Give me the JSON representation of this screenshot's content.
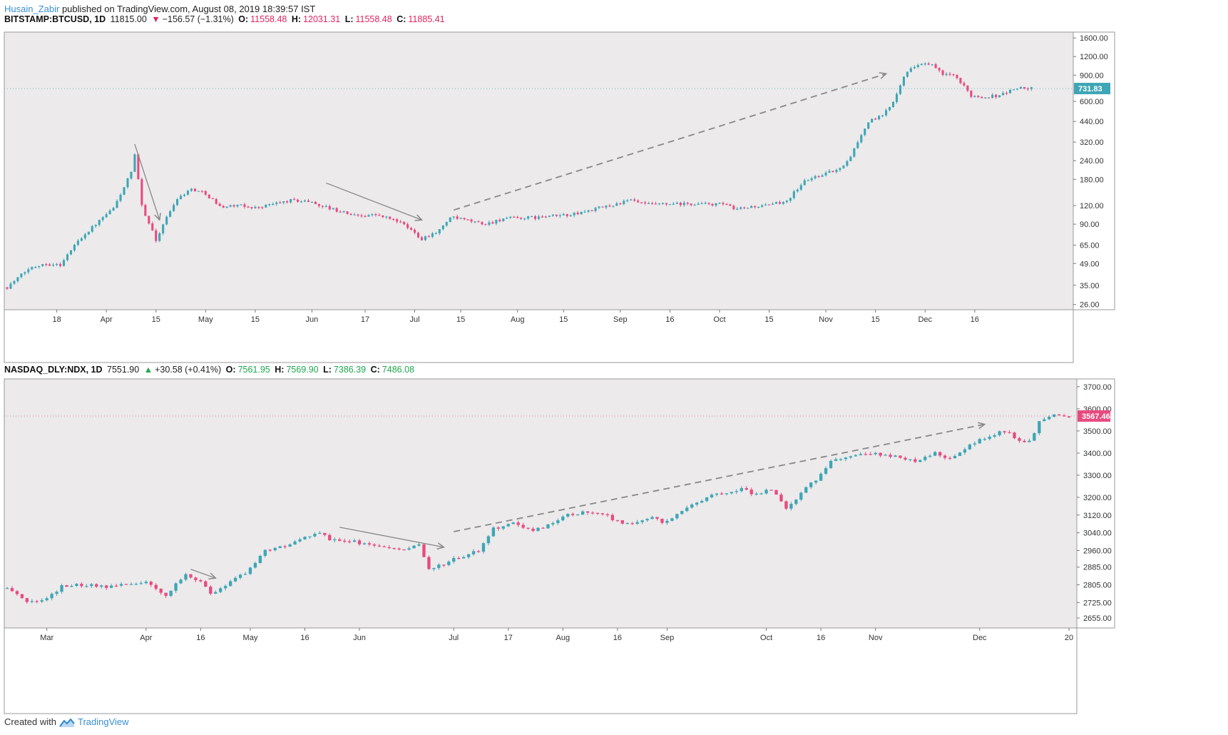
{
  "header": {
    "author": "Husain_Zabir",
    "published_text": "published on TradingView.com, August 08, 2019 18:39:57 IST"
  },
  "footer": {
    "created_with": "Created with",
    "brand": "TradingView"
  },
  "colors": {
    "up": "#3ea6b5",
    "down": "#e84a7f",
    "plot_bg": "#eceaeb",
    "arrow": "#888888"
  },
  "chart_data": [
    {
      "type": "candlestick",
      "symbol": "BITSTAMP:BTCUSD, 1D",
      "legend": {
        "last": "11815.00",
        "direction": "down",
        "change": "−156.57 (−1.31%)",
        "o_label": "O:",
        "o": "11558.48",
        "h_label": "H:",
        "h": "12031.31",
        "l_label": "L:",
        "l": "11558.48",
        "c_label": "C:",
        "c": "11885.41"
      },
      "y_scale": "log",
      "ylim": [
        24,
        1750
      ],
      "y_ticks": [
        {
          "v": 1600,
          "label": "1600.00"
        },
        {
          "v": 1200,
          "label": "1200.00"
        },
        {
          "v": 900,
          "label": "900.00"
        },
        {
          "v": 600,
          "label": "600.00"
        },
        {
          "v": 440,
          "label": "440.00"
        },
        {
          "v": 320,
          "label": "320.00"
        },
        {
          "v": 240,
          "label": "240.00"
        },
        {
          "v": 180,
          "label": "180.00"
        },
        {
          "v": 120,
          "label": "120.00"
        },
        {
          "v": 90,
          "label": "90.00"
        },
        {
          "v": 65,
          "label": "65.00"
        },
        {
          "v": 49,
          "label": "49.00"
        },
        {
          "v": 35,
          "label": "35.00"
        },
        {
          "v": 26,
          "label": "26.00"
        }
      ],
      "last_price_tag": {
        "value": 731.83,
        "label": "731.83",
        "color": "#3ea6b5"
      },
      "x_range": [
        0,
        300
      ],
      "x_ticks": [
        {
          "v": 14,
          "label": "18"
        },
        {
          "v": 28,
          "label": "Apr"
        },
        {
          "v": 42,
          "label": "15"
        },
        {
          "v": 56,
          "label": "May"
        },
        {
          "v": 70,
          "label": "15"
        },
        {
          "v": 86,
          "label": "Jun"
        },
        {
          "v": 101,
          "label": "17"
        },
        {
          "v": 115,
          "label": "Jul"
        },
        {
          "v": 128,
          "label": "15"
        },
        {
          "v": 144,
          "label": "Aug"
        },
        {
          "v": 157,
          "label": "15"
        },
        {
          "v": 173,
          "label": "Sep"
        },
        {
          "v": 187,
          "label": "16"
        },
        {
          "v": 201,
          "label": "Oct"
        },
        {
          "v": 215,
          "label": "15"
        },
        {
          "v": 231,
          "label": "Nov"
        },
        {
          "v": 245,
          "label": "15"
        },
        {
          "v": 259,
          "label": "Dec"
        },
        {
          "v": 273,
          "label": "16"
        }
      ],
      "path": [
        [
          0,
          34
        ],
        [
          6,
          45
        ],
        [
          10,
          49
        ],
        [
          15,
          48
        ],
        [
          20,
          70
        ],
        [
          25,
          90
        ],
        [
          30,
          115
        ],
        [
          35,
          200
        ],
        [
          36,
          260
        ],
        [
          38,
          120
        ],
        [
          42,
          70
        ],
        [
          44,
          90
        ],
        [
          48,
          135
        ],
        [
          52,
          155
        ],
        [
          56,
          145
        ],
        [
          60,
          118
        ],
        [
          65,
          120
        ],
        [
          70,
          116
        ],
        [
          80,
          130
        ],
        [
          85,
          128
        ],
        [
          92,
          113
        ],
        [
          98,
          103
        ],
        [
          104,
          104
        ],
        [
          110,
          95
        ],
        [
          114,
          82
        ],
        [
          117,
          72
        ],
        [
          122,
          82
        ],
        [
          125,
          100
        ],
        [
          130,
          95
        ],
        [
          135,
          90
        ],
        [
          140,
          98
        ],
        [
          150,
          100
        ],
        [
          160,
          105
        ],
        [
          170,
          120
        ],
        [
          176,
          130
        ],
        [
          180,
          122
        ],
        [
          185,
          122
        ],
        [
          195,
          123
        ],
        [
          203,
          122
        ],
        [
          205,
          112
        ],
        [
          210,
          118
        ],
        [
          215,
          120
        ],
        [
          220,
          130
        ],
        [
          225,
          175
        ],
        [
          230,
          195
        ],
        [
          235,
          210
        ],
        [
          238,
          260
        ],
        [
          243,
          440
        ],
        [
          247,
          480
        ],
        [
          250,
          600
        ],
        [
          253,
          900
        ],
        [
          257,
          1080
        ],
        [
          261,
          1050
        ],
        [
          264,
          900
        ],
        [
          266,
          920
        ],
        [
          268,
          850
        ],
        [
          272,
          660
        ],
        [
          275,
          640
        ],
        [
          280,
          660
        ],
        [
          285,
          740
        ],
        [
          289,
          731.83
        ]
      ],
      "annotations": [
        {
          "style": "solid",
          "from": [
            36,
            310
          ],
          "to": [
            43,
            96
          ]
        },
        {
          "style": "solid",
          "from": [
            90,
            170
          ],
          "to": [
            117,
            96
          ]
        },
        {
          "style": "dashed",
          "from": [
            126,
            112
          ],
          "to": [
            248,
            920
          ]
        }
      ]
    },
    {
      "type": "candlestick",
      "symbol": "NASDAQ_DLY:NDX, 1D",
      "legend": {
        "last": "7551.90",
        "direction": "up",
        "change": "+30.58 (+0.41%)",
        "o_label": "O:",
        "o": "7561.95",
        "h_label": "H:",
        "h": "7569.90",
        "l_label": "L:",
        "l": "7386.39",
        "c_label": "C:",
        "c": "7486.08"
      },
      "y_scale": "linear",
      "ylim": [
        2610,
        3735
      ],
      "y_ticks": [
        {
          "v": 3700,
          "label": "3700.00"
        },
        {
          "v": 3600,
          "label": "3600.00"
        },
        {
          "v": 3500,
          "label": "3500.00"
        },
        {
          "v": 3400,
          "label": "3400.00"
        },
        {
          "v": 3300,
          "label": "3300.00"
        },
        {
          "v": 3200,
          "label": "3200.00"
        },
        {
          "v": 3120,
          "label": "3120.00"
        },
        {
          "v": 3040,
          "label": "3040.00"
        },
        {
          "v": 2960,
          "label": "2960.00"
        },
        {
          "v": 2885,
          "label": "2885.00"
        },
        {
          "v": 2805,
          "label": "2805.00"
        },
        {
          "v": 2725,
          "label": "2725.00"
        },
        {
          "v": 2655,
          "label": "2655.00"
        }
      ],
      "last_price_tag": {
        "value": 3567.46,
        "label": "3567.46",
        "color": "#e84a7f"
      },
      "x_range": [
        0,
        215
      ],
      "x_ticks": [
        {
          "v": 8,
          "label": "Mar"
        },
        {
          "v": 28,
          "label": "Apr"
        },
        {
          "v": 39,
          "label": "16"
        },
        {
          "v": 49,
          "label": "May"
        },
        {
          "v": 60,
          "label": "16"
        },
        {
          "v": 71,
          "label": "Jun"
        },
        {
          "v": 90,
          "label": "Jul"
        },
        {
          "v": 101,
          "label": "17"
        },
        {
          "v": 112,
          "label": "Aug"
        },
        {
          "v": 123,
          "label": "16"
        },
        {
          "v": 133,
          "label": "Sep"
        },
        {
          "v": 153,
          "label": "Oct"
        },
        {
          "v": 164,
          "label": "16"
        },
        {
          "v": 175,
          "label": "Nov"
        },
        {
          "v": 196,
          "label": "Dec"
        },
        {
          "v": 214,
          "label": "20"
        }
      ],
      "path": [
        [
          0,
          2790
        ],
        [
          4,
          2730
        ],
        [
          8,
          2740
        ],
        [
          11,
          2800
        ],
        [
          16,
          2805
        ],
        [
          20,
          2795
        ],
        [
          25,
          2810
        ],
        [
          28,
          2815
        ],
        [
          32,
          2760
        ],
        [
          36,
          2850
        ],
        [
          39,
          2820
        ],
        [
          41,
          2760
        ],
        [
          44,
          2800
        ],
        [
          48,
          2860
        ],
        [
          52,
          2960
        ],
        [
          56,
          2980
        ],
        [
          60,
          3020
        ],
        [
          63,
          3040
        ],
        [
          65,
          3010
        ],
        [
          70,
          3000
        ],
        [
          75,
          2975
        ],
        [
          80,
          2960
        ],
        [
          83,
          2990
        ],
        [
          85,
          2870
        ],
        [
          87,
          2890
        ],
        [
          90,
          2920
        ],
        [
          95,
          2960
        ],
        [
          98,
          3060
        ],
        [
          102,
          3080
        ],
        [
          106,
          3050
        ],
        [
          110,
          3080
        ],
        [
          113,
          3120
        ],
        [
          116,
          3130
        ],
        [
          120,
          3130
        ],
        [
          123,
          3090
        ],
        [
          126,
          3080
        ],
        [
          130,
          3115
        ],
        [
          132,
          3080
        ],
        [
          136,
          3140
        ],
        [
          140,
          3190
        ],
        [
          144,
          3220
        ],
        [
          148,
          3240
        ],
        [
          151,
          3210
        ],
        [
          154,
          3240
        ],
        [
          157,
          3150
        ],
        [
          160,
          3220
        ],
        [
          163,
          3280
        ],
        [
          166,
          3360
        ],
        [
          170,
          3390
        ],
        [
          173,
          3400
        ],
        [
          177,
          3390
        ],
        [
          180,
          3380
        ],
        [
          183,
          3360
        ],
        [
          187,
          3400
        ],
        [
          190,
          3370
        ],
        [
          195,
          3450
        ],
        [
          198,
          3480
        ],
        [
          201,
          3500
        ],
        [
          204,
          3460
        ],
        [
          206,
          3450
        ],
        [
          208,
          3540
        ],
        [
          211,
          3570
        ],
        [
          214,
          3567.46
        ]
      ],
      "annotations": [
        {
          "style": "solid",
          "from": [
            37,
            2875
          ],
          "to": [
            42,
            2835
          ]
        },
        {
          "style": "solid",
          "from": [
            67,
            3065
          ],
          "to": [
            88,
            2975
          ]
        },
        {
          "style": "dashed",
          "from": [
            90,
            3045
          ],
          "to": [
            197,
            3530
          ]
        }
      ]
    }
  ]
}
